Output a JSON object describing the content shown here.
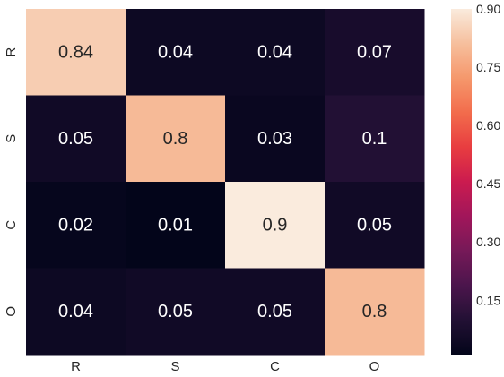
{
  "chart_data": {
    "type": "heatmap",
    "title": "",
    "xlabel": "",
    "ylabel": "",
    "x_categories": [
      "R",
      "S",
      "C",
      "O"
    ],
    "y_categories": [
      "R",
      "S",
      "C",
      "O"
    ],
    "values": [
      [
        0.84,
        0.04,
        0.04,
        0.07
      ],
      [
        0.05,
        0.8,
        0.03,
        0.1
      ],
      [
        0.02,
        0.01,
        0.9,
        0.05
      ],
      [
        0.04,
        0.05,
        0.05,
        0.8
      ]
    ],
    "annotations": [
      [
        "0.84",
        "0.04",
        "0.04",
        "0.07"
      ],
      [
        "0.05",
        "0.8",
        "0.03",
        "0.1"
      ],
      [
        "0.02",
        "0.01",
        "0.9",
        "0.05"
      ],
      [
        "0.04",
        "0.05",
        "0.05",
        "0.8"
      ]
    ],
    "colormap": "rocket",
    "vmin": 0.01,
    "vmax": 0.9,
    "colorbar": {
      "ticks": [
        0.15,
        0.3,
        0.45,
        0.6,
        0.75,
        0.9
      ],
      "tick_labels": [
        "0.15",
        "0.30",
        "0.45",
        "0.60",
        "0.75",
        "0.90"
      ],
      "placement": "right"
    },
    "colors": {
      "text_light": "#ffffff",
      "text_dark": "#262626",
      "axis_text": "#262626"
    },
    "grid": false
  }
}
